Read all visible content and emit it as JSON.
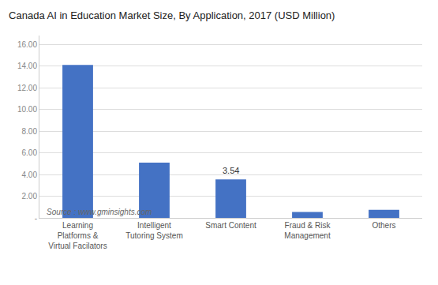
{
  "chart_data": {
    "type": "bar",
    "title": "Canada AI in Education Market Size, By Application, 2017 (USD Million)",
    "categories": [
      "Learning\nPlatforms &\nVirtual Facilators",
      "Intelligent\nTutoring System",
      "Smart Content",
      "Fraud & Risk\nManagement",
      "Others"
    ],
    "values": [
      14.1,
      5.1,
      3.54,
      0.55,
      0.75
    ],
    "color": "#4472c4",
    "ylim": [
      0,
      16.8
    ],
    "yticks": [
      {
        "value": 0,
        "label": "-"
      },
      {
        "value": 2.0,
        "label": "2.00"
      },
      {
        "value": 4.0,
        "label": "4.00"
      },
      {
        "value": 6.0,
        "label": "6.00"
      },
      {
        "value": 8.0,
        "label": "8.00"
      },
      {
        "value": 10.0,
        "label": "10.00"
      },
      {
        "value": 12.0,
        "label": "12.00"
      },
      {
        "value": 14.0,
        "label": "14.00"
      },
      {
        "value": 16.0,
        "label": "16.00"
      }
    ],
    "grid": true,
    "annotations": [
      {
        "category": "Smart Content",
        "text": "3.54"
      }
    ],
    "source": "Source : www.gminsights.com"
  }
}
